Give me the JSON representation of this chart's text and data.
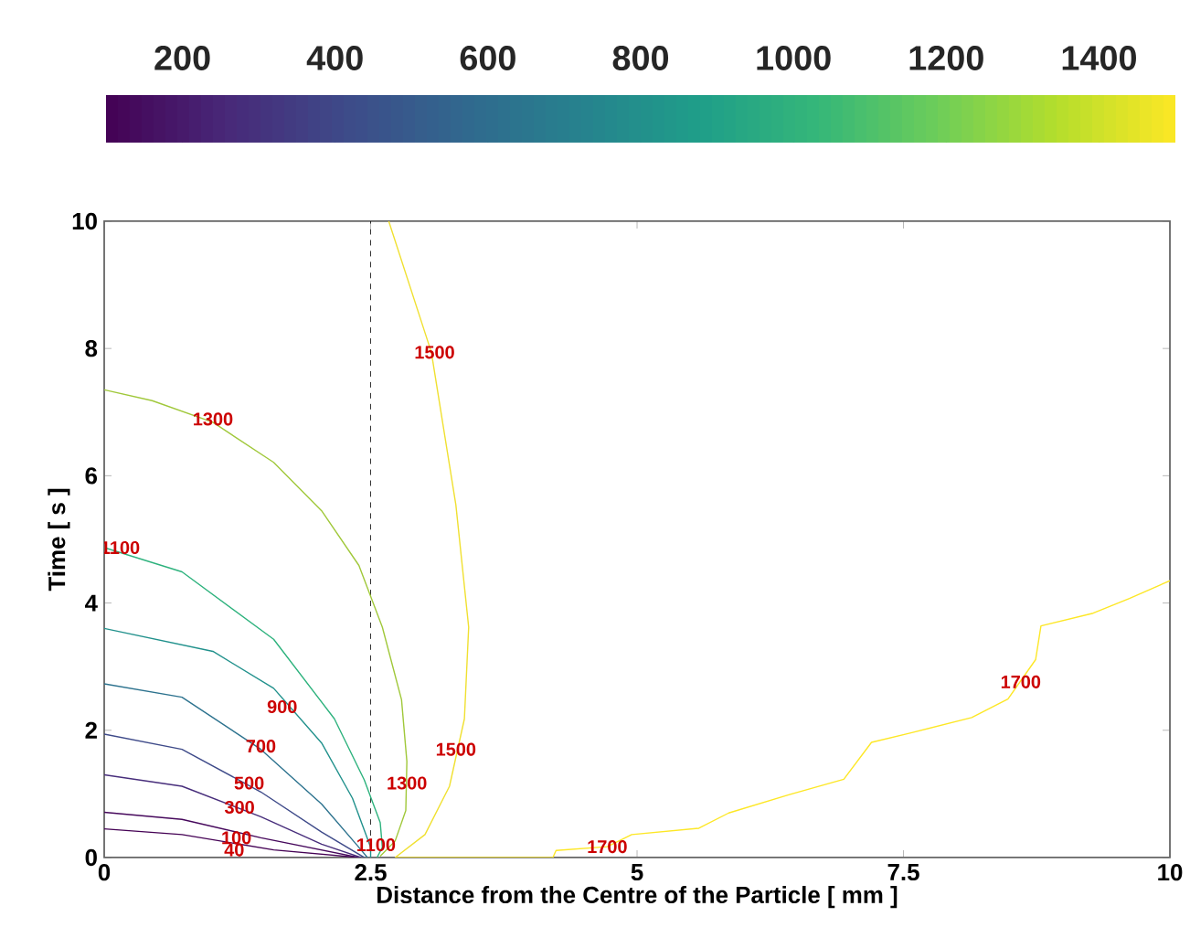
{
  "chart_data": {
    "type": "line",
    "xlabel": "Distance from the Centre of the Particle [ mm ]",
    "ylabel": "Time [ s ]",
    "xlim": [
      0,
      10
    ],
    "ylim": [
      0,
      10
    ],
    "xticks": [
      0,
      2.5,
      5,
      7.5,
      10
    ],
    "yticks": [
      0,
      2,
      4,
      6,
      8,
      10
    ],
    "clim": [
      100,
      1500
    ],
    "cticks": [
      200,
      400,
      600,
      800,
      1000,
      1200,
      1400
    ],
    "grid": false,
    "ref_lines": [
      {
        "axis": "x",
        "value": 2.5,
        "color": "#000000",
        "line_style": "dashed"
      }
    ],
    "series": [
      {
        "color": "#440154",
        "x": [
          0,
          0.73,
          1.59,
          2.39
        ],
        "values": [
          0.45,
          0.36,
          0.12,
          0
        ]
      },
      {
        "color": "#46085c",
        "x": [
          0,
          0.73,
          1.47,
          2.39
        ],
        "values": [
          0.71,
          0.6,
          0.31,
          0
        ]
      },
      {
        "color": "#472d7b",
        "x": [
          0,
          0.73,
          1.47,
          2.04,
          2.41
        ],
        "values": [
          1.3,
          1.12,
          0.64,
          0.21,
          0
        ]
      },
      {
        "color": "#3e4a89",
        "x": [
          0,
          0.73,
          1.47,
          2.04,
          2.44
        ],
        "values": [
          1.94,
          1.7,
          1.03,
          0.4,
          0
        ]
      },
      {
        "color": "#2c728e",
        "x": [
          0,
          0.73,
          1.47,
          2.04,
          2.39,
          2.47
        ],
        "values": [
          2.73,
          2.52,
          1.7,
          0.84,
          0.16,
          0
        ]
      },
      {
        "color": "#21918c",
        "x": [
          0,
          1.02,
          1.59,
          2.04,
          2.33,
          2.5,
          2.5
        ],
        "values": [
          3.6,
          3.24,
          2.66,
          1.8,
          0.93,
          0.16,
          0
        ]
      },
      {
        "color": "#2db27d",
        "x": [
          0,
          0.73,
          1.59,
          2.16,
          2.44,
          2.59,
          2.61,
          2.56
        ],
        "values": [
          4.87,
          4.49,
          3.43,
          2.18,
          1.22,
          0.55,
          0.16,
          0
        ]
      },
      {
        "color": "#a0c83a",
        "x": [
          0,
          0.45,
          1.02,
          1.59,
          2.04,
          2.39,
          2.61,
          2.79,
          2.84,
          2.83,
          2.73,
          2.59
        ],
        "values": [
          7.35,
          7.18,
          6.84,
          6.21,
          5.45,
          4.59,
          3.62,
          2.48,
          1.51,
          0.74,
          0.26,
          0.02
        ]
      },
      {
        "color": "#f0e030",
        "x": [
          2.67,
          3.07,
          3.3,
          3.42,
          3.38,
          3.24,
          3.01,
          2.73
        ],
        "values": [
          10,
          7.94,
          5.54,
          3.62,
          2.18,
          1.12,
          0.36,
          0
        ]
      },
      {
        "color": "#fde725",
        "x": [
          2.73,
          4.21,
          4.24,
          4.72,
          4.95,
          5.58,
          5.86,
          6.43,
          6.94,
          7.2,
          7.57,
          8.14,
          8.48,
          8.74,
          8.79,
          9.28,
          9.62,
          10
        ],
        "values": [
          0,
          0,
          0.11,
          0.17,
          0.36,
          0.46,
          0.7,
          0.99,
          1.23,
          1.81,
          1.96,
          2.2,
          2.49,
          3.11,
          3.64,
          3.84,
          4.07,
          4.35
        ]
      }
    ],
    "annotations": [
      {
        "text": "40",
        "x": 1.22,
        "y": 0.12
      },
      {
        "text": "100",
        "x": 1.24,
        "y": 0.31
      },
      {
        "text": "300",
        "x": 1.27,
        "y": 0.79
      },
      {
        "text": "500",
        "x": 1.36,
        "y": 1.17
      },
      {
        "text": "700",
        "x": 1.47,
        "y": 1.75
      },
      {
        "text": "900",
        "x": 1.67,
        "y": 2.37
      },
      {
        "text": "1100",
        "x": 0.15,
        "y": 4.87
      },
      {
        "text": "1300",
        "x": 1.02,
        "y": 6.89
      },
      {
        "text": "1300",
        "x": 2.84,
        "y": 1.17
      },
      {
        "text": "1500",
        "x": 3.1,
        "y": 7.94
      },
      {
        "text": "1500",
        "x": 3.3,
        "y": 1.7
      },
      {
        "text": "1100",
        "x": 2.55,
        "y": 0.2
      },
      {
        "text": "1700",
        "x": 4.72,
        "y": 0.17
      },
      {
        "text": "1700",
        "x": 8.6,
        "y": 2.76
      }
    ]
  }
}
